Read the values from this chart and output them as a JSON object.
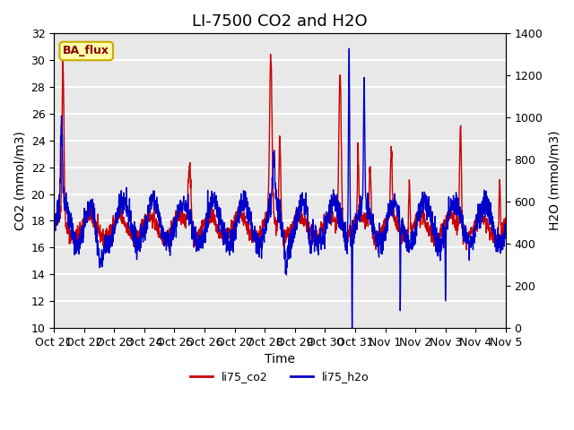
{
  "title": "LI-7500 CO2 and H2O",
  "xlabel": "Time",
  "ylabel_left": "CO2 (mmol/m3)",
  "ylabel_right": "H2O (mmol/m3)",
  "ylim_left": [
    10,
    32
  ],
  "ylim_right": [
    0,
    1400
  ],
  "yticks_left": [
    10,
    12,
    14,
    16,
    18,
    20,
    22,
    24,
    26,
    28,
    30,
    32
  ],
  "yticks_right": [
    0,
    200,
    400,
    600,
    800,
    1000,
    1200,
    1400
  ],
  "xtick_labels": [
    "Oct 21",
    "Oct 22",
    "Oct 23",
    "Oct 24",
    "Oct 25",
    "Oct 26",
    "Oct 27",
    "Oct 28",
    "Oct 29",
    "Oct 30",
    "Oct 31",
    "Nov 1",
    "Nov 2",
    "Nov 3",
    "Nov 4",
    "Nov 5"
  ],
  "color_co2": "#cc0000",
  "color_h2o": "#0000cc",
  "legend_labels": [
    "li75_co2",
    "li75_h2o"
  ],
  "bg_color": "#e8e8e8",
  "watermark_text": "BA_flux",
  "watermark_bg": "#ffffaa",
  "watermark_border": "#ccaa00",
  "grid_color": "#ffffff",
  "title_fontsize": 13,
  "label_fontsize": 10,
  "tick_fontsize": 9,
  "n_days": 15
}
